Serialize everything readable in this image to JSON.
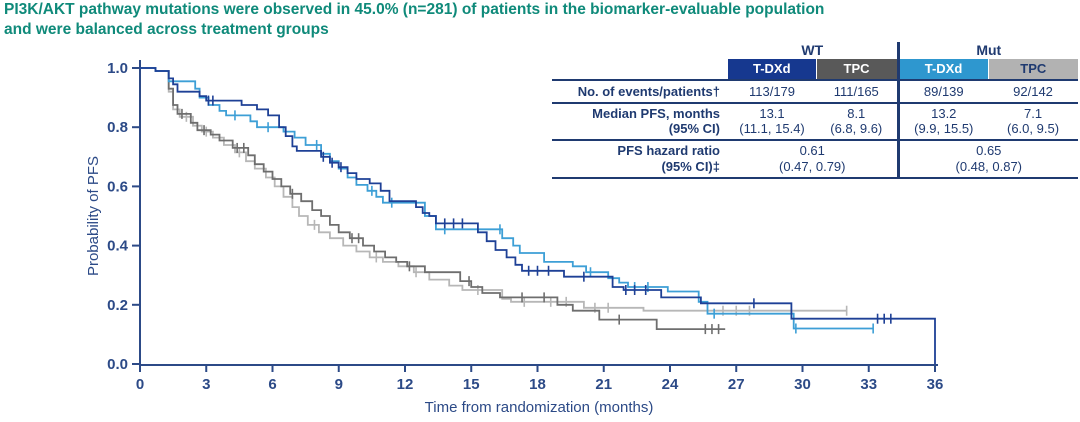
{
  "title": {
    "line1": "PI3K/AKT pathway mutations were observed in 45.0% (n=281) of patients in the biomarker-evaluable population",
    "line2": "and were balanced across treatment groups"
  },
  "colors": {
    "title_teal": "#0f8a7a",
    "table_navy": "#1f3a70",
    "axis_navy": "#2c4a87",
    "tdxd_wt_blue": "#1e4096",
    "tpc_wt_gray": "#6e6e6e",
    "tdxd_mut_blue": "#3d9fd6",
    "tpc_mut_gray": "#b7b7b7"
  },
  "table": {
    "group_headers": [
      "WT",
      "Mut"
    ],
    "columns": [
      {
        "label": "T-DXd",
        "bg": "#16388f",
        "fg": "#ffffff"
      },
      {
        "label": "TPC",
        "bg": "#595959",
        "fg": "#ffffff"
      },
      {
        "label": "T-DXd",
        "bg": "#2e97cf",
        "fg": "#ffffff"
      },
      {
        "label": "TPC",
        "bg": "#b2b2b2",
        "fg": "#1f3a70"
      }
    ],
    "rows": [
      {
        "label": "No. of events/patients†",
        "values": [
          "113/179",
          "111/165",
          "89/139",
          "92/142"
        ]
      },
      {
        "label": "Median PFS, months",
        "label2": "(95% CI)",
        "values": [
          "13.1",
          "8.1",
          "13.2",
          "7.1"
        ],
        "values2": [
          "(11.1, 15.4)",
          "(6.8, 9.6)",
          "(9.9, 15.5)",
          "(6.0, 9.5)"
        ]
      },
      {
        "label": "PFS hazard ratio",
        "label2": "(95% CI)‡",
        "span_values": [
          "0.61",
          "0.65"
        ],
        "span_values2": [
          "(0.47, 0.79)",
          "(0.48, 0.87)"
        ]
      }
    ]
  },
  "chart_data": {
    "type": "line",
    "subtype": "kaplan-meier-step",
    "title": "",
    "xlabel": "Time from randomization (months)",
    "ylabel": "Probability of PFS",
    "xlim": [
      0,
      36
    ],
    "ylim": [
      0.0,
      1.0
    ],
    "xticks": [
      0,
      3,
      6,
      9,
      12,
      15,
      18,
      21,
      24,
      27,
      30,
      33,
      36
    ],
    "yticks": [
      "0.0",
      "0.2",
      "0.4",
      "0.6",
      "0.8",
      "1.0"
    ],
    "grid": "off",
    "legend": "none (series identified by table header colors)",
    "series": [
      {
        "id": "tpc-mut",
        "name": "TPC (Mut)",
        "color": "#b7b7b7",
        "median_pfs_months": 7.1,
        "steps": [
          [
            0,
            1.0
          ],
          [
            0.7,
            0.99
          ],
          [
            1.3,
            0.92
          ],
          [
            1.5,
            0.86
          ],
          [
            1.8,
            0.835
          ],
          [
            2.4,
            0.805
          ],
          [
            2.8,
            0.785
          ],
          [
            3.3,
            0.765
          ],
          [
            3.8,
            0.74
          ],
          [
            4.3,
            0.715
          ],
          [
            4.8,
            0.685
          ],
          [
            5.2,
            0.66
          ],
          [
            5.7,
            0.63
          ],
          [
            6.1,
            0.6
          ],
          [
            6.5,
            0.565
          ],
          [
            6.9,
            0.53
          ],
          [
            7.2,
            0.5
          ],
          [
            7.6,
            0.47
          ],
          [
            8.1,
            0.445
          ],
          [
            8.6,
            0.425
          ],
          [
            9.2,
            0.4
          ],
          [
            9.8,
            0.38
          ],
          [
            10.4,
            0.36
          ],
          [
            11.0,
            0.345
          ],
          [
            11.7,
            0.33
          ],
          [
            12.4,
            0.31
          ],
          [
            13.1,
            0.285
          ],
          [
            14.0,
            0.265
          ],
          [
            14.6,
            0.25
          ],
          [
            16.4,
            0.22
          ],
          [
            16.8,
            0.21
          ],
          [
            20.1,
            0.19
          ],
          [
            22.8,
            0.18
          ],
          [
            32.0,
            0.18
          ]
        ],
        "censors": [
          2.1,
          3.0,
          4.5,
          7.9,
          10.7,
          12.5,
          15.3,
          17.4,
          18.6,
          19.3,
          20.6,
          21.2,
          26.4,
          27.0,
          27.6,
          32.0
        ]
      },
      {
        "id": "tpc-wt",
        "name": "TPC (WT)",
        "color": "#6e6e6e",
        "median_pfs_months": 8.1,
        "steps": [
          [
            0,
            1.0
          ],
          [
            0.7,
            0.99
          ],
          [
            1.3,
            0.93
          ],
          [
            1.5,
            0.875
          ],
          [
            1.7,
            0.845
          ],
          [
            2.3,
            0.815
          ],
          [
            2.6,
            0.79
          ],
          [
            3.2,
            0.775
          ],
          [
            3.6,
            0.755
          ],
          [
            4.2,
            0.73
          ],
          [
            4.9,
            0.705
          ],
          [
            5.2,
            0.675
          ],
          [
            5.6,
            0.65
          ],
          [
            6.0,
            0.625
          ],
          [
            6.4,
            0.6
          ],
          [
            6.8,
            0.575
          ],
          [
            7.3,
            0.55
          ],
          [
            7.8,
            0.52
          ],
          [
            8.2,
            0.5
          ],
          [
            8.6,
            0.47
          ],
          [
            9.0,
            0.445
          ],
          [
            9.5,
            0.425
          ],
          [
            10.1,
            0.4
          ],
          [
            10.6,
            0.38
          ],
          [
            11.1,
            0.36
          ],
          [
            11.6,
            0.345
          ],
          [
            12.1,
            0.33
          ],
          [
            12.9,
            0.31
          ],
          [
            14.5,
            0.28
          ],
          [
            15.0,
            0.26
          ],
          [
            15.5,
            0.24
          ],
          [
            16.3,
            0.225
          ],
          [
            18.9,
            0.2
          ],
          [
            19.6,
            0.18
          ],
          [
            20.8,
            0.15
          ],
          [
            23.4,
            0.118
          ],
          [
            26.5,
            0.118
          ]
        ],
        "censors": [
          1.9,
          2.9,
          4.4,
          4.7,
          6.9,
          9.6,
          9.9,
          12.2,
          14.9,
          17.3,
          18.3,
          21.7,
          25.6,
          25.9,
          26.2
        ]
      },
      {
        "id": "tdxd-mut",
        "name": "T-DXd (Mut)",
        "color": "#3d9fd6",
        "median_pfs_months": 13.2,
        "steps": [
          [
            0,
            1.0
          ],
          [
            0.7,
            0.99
          ],
          [
            1.3,
            0.955
          ],
          [
            2.5,
            0.93
          ],
          [
            2.7,
            0.9
          ],
          [
            3.1,
            0.875
          ],
          [
            3.6,
            0.855
          ],
          [
            3.9,
            0.84
          ],
          [
            5.0,
            0.82
          ],
          [
            5.3,
            0.8
          ],
          [
            6.5,
            0.785
          ],
          [
            7.0,
            0.765
          ],
          [
            7.5,
            0.74
          ],
          [
            8.2,
            0.71
          ],
          [
            8.6,
            0.685
          ],
          [
            9.0,
            0.66
          ],
          [
            9.4,
            0.63
          ],
          [
            9.8,
            0.605
          ],
          [
            10.3,
            0.585
          ],
          [
            10.7,
            0.565
          ],
          [
            11.0,
            0.545
          ],
          [
            12.9,
            0.5
          ],
          [
            13.4,
            0.455
          ],
          [
            16.4,
            0.425
          ],
          [
            16.9,
            0.4
          ],
          [
            17.2,
            0.375
          ],
          [
            18.3,
            0.345
          ],
          [
            19.6,
            0.33
          ],
          [
            20.2,
            0.31
          ],
          [
            21.2,
            0.29
          ],
          [
            21.7,
            0.275
          ],
          [
            22.1,
            0.26
          ],
          [
            23.9,
            0.245
          ],
          [
            25.3,
            0.21
          ],
          [
            25.7,
            0.17
          ],
          [
            29.6,
            0.12
          ],
          [
            33.2,
            0.12
          ]
        ],
        "censors": [
          4.3,
          5.8,
          8.0,
          10.5,
          11.4,
          13.8,
          16.3,
          20.4,
          22.4,
          23.0,
          26.0,
          29.7,
          33.2
        ]
      },
      {
        "id": "tdxd-wt",
        "name": "T-DXd (WT)",
        "color": "#1e4096",
        "median_pfs_months": 13.1,
        "steps": [
          [
            0,
            1.0
          ],
          [
            0.7,
            0.99
          ],
          [
            1.3,
            0.965
          ],
          [
            1.5,
            0.945
          ],
          [
            1.7,
            0.92
          ],
          [
            2.7,
            0.905
          ],
          [
            3.0,
            0.89
          ],
          [
            4.6,
            0.875
          ],
          [
            5.3,
            0.86
          ],
          [
            5.8,
            0.84
          ],
          [
            6.3,
            0.8
          ],
          [
            6.6,
            0.77
          ],
          [
            6.9,
            0.735
          ],
          [
            7.1,
            0.72
          ],
          [
            8.2,
            0.7
          ],
          [
            8.6,
            0.68
          ],
          [
            9.0,
            0.665
          ],
          [
            9.4,
            0.645
          ],
          [
            9.8,
            0.625
          ],
          [
            10.4,
            0.61
          ],
          [
            10.9,
            0.585
          ],
          [
            11.3,
            0.55
          ],
          [
            12.5,
            0.53
          ],
          [
            12.8,
            0.51
          ],
          [
            13.1,
            0.5
          ],
          [
            13.4,
            0.475
          ],
          [
            15.3,
            0.445
          ],
          [
            15.7,
            0.415
          ],
          [
            16.1,
            0.385
          ],
          [
            16.6,
            0.36
          ],
          [
            17.0,
            0.335
          ],
          [
            17.3,
            0.315
          ],
          [
            19.2,
            0.295
          ],
          [
            21.4,
            0.26
          ],
          [
            21.9,
            0.25
          ],
          [
            23.6,
            0.225
          ],
          [
            25.4,
            0.205
          ],
          [
            29.5,
            0.153
          ],
          [
            36,
            0.153
          ],
          [
            36,
            0
          ]
        ],
        "censors": [
          3.1,
          3.3,
          8.3,
          8.7,
          9.1,
          13.8,
          14.2,
          14.6,
          17.6,
          18.0,
          18.5,
          20.1,
          22.0,
          22.4,
          22.9,
          27.8,
          33.4,
          33.7,
          34.0
        ]
      }
    ]
  }
}
